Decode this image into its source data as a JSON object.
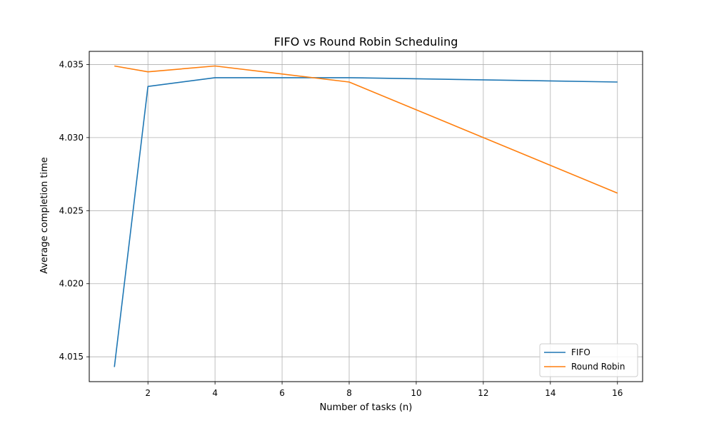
{
  "chart_data": {
    "type": "line",
    "title": "FIFO vs Round Robin Scheduling",
    "xlabel": "Number of tasks (n)",
    "ylabel": "Average completion time",
    "xlim": [
      0.25,
      16.75
    ],
    "ylim": [
      4.0133,
      4.0359
    ],
    "xticks": [
      2,
      4,
      6,
      8,
      10,
      12,
      14,
      16
    ],
    "xtick_labels": [
      "2",
      "4",
      "6",
      "8",
      "10",
      "12",
      "14",
      "16"
    ],
    "yticks": [
      4.015,
      4.02,
      4.025,
      4.03,
      4.035
    ],
    "ytick_labels": [
      "4.015",
      "4.020",
      "4.025",
      "4.030",
      "4.035"
    ],
    "grid": true,
    "legend_position": "lower-right",
    "series": [
      {
        "name": "FIFO",
        "color": "#1f77b4",
        "x": [
          1,
          2,
          4,
          8,
          16
        ],
        "y": [
          4.0143,
          4.0335,
          4.0341,
          4.0341,
          4.0338
        ]
      },
      {
        "name": "Round Robin",
        "color": "#ff7f0e",
        "x": [
          1,
          2,
          4,
          8,
          16
        ],
        "y": [
          4.0349,
          4.0345,
          4.0349,
          4.0338,
          4.0262
        ]
      }
    ]
  }
}
